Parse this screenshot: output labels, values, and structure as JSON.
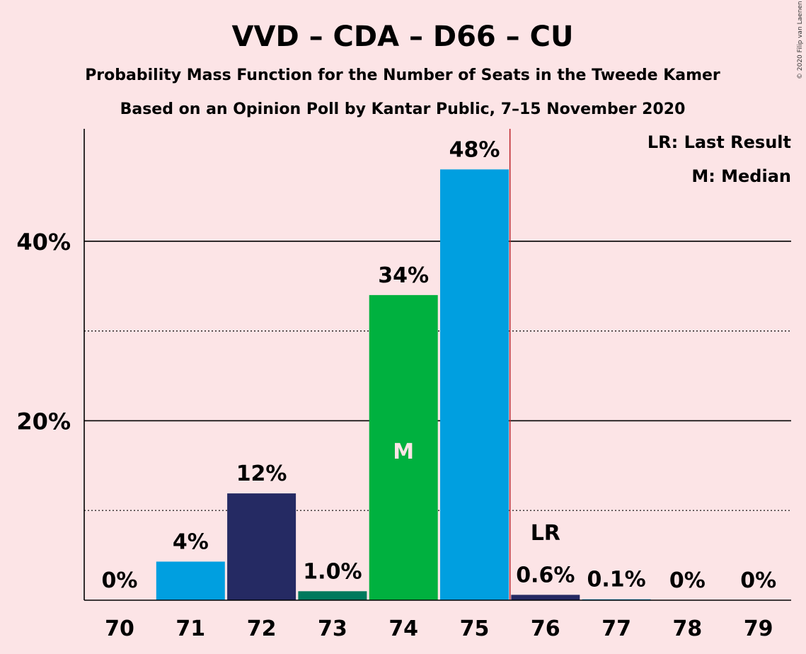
{
  "title": "VVD – CDA – D66 – CU",
  "subtitle1": "Probability Mass Function for the Number of Seats in the Tweede Kamer",
  "subtitle2": "Based on an Opinion Poll by Kantar Public, 7–15 November 2020",
  "copyright": "© 2020 Filip van Laenen",
  "legend": {
    "last_result": "LR: Last Result",
    "median": "M: Median"
  },
  "colors": {
    "background": "#fce4e6",
    "vvd_blue": "#009fe0",
    "cda_navy": "#252a63",
    "cu_teal": "#00795d",
    "d66_green": "#00b13f",
    "last_result_line": "#c0282f"
  },
  "chart_data": {
    "type": "bar",
    "categories": [
      "70",
      "71",
      "72",
      "73",
      "74",
      "75",
      "76",
      "77",
      "78",
      "79"
    ],
    "values": [
      0,
      4.3,
      11.9,
      1.0,
      34.0,
      48.0,
      0.6,
      0.1,
      0,
      0
    ],
    "labels": [
      "0%",
      "4%",
      "12%",
      "1.0%",
      "34%",
      "48%",
      "0.6%",
      "0.1%",
      "0%",
      "0%"
    ],
    "bar_colors": [
      "#009fe0",
      "#009fe0",
      "#252a63",
      "#00795d",
      "#00b13f",
      "#009fe0",
      "#252a63",
      "#009fe0",
      "#009fe0",
      "#009fe0"
    ],
    "ylim": [
      0,
      52
    ],
    "yticks": [
      20,
      40
    ],
    "ytick_labels": [
      "20%",
      "40%"
    ],
    "minor_gridlines": [
      10,
      30
    ],
    "median_category": "74",
    "median_marker": "M",
    "last_result_category": "76",
    "last_result_marker": "LR"
  }
}
